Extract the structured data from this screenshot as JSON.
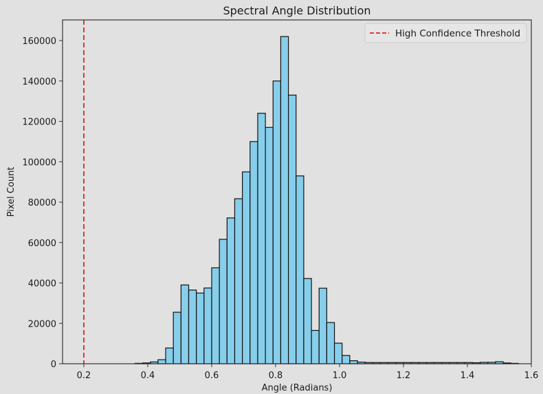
{
  "chart_data": {
    "type": "bar",
    "subtype": "histogram",
    "title": "Spectral Angle Distribution",
    "xlabel": "Angle (Radians)",
    "ylabel": "Pixel Count",
    "xlim": [
      0.135,
      1.6
    ],
    "ylim": [
      0,
      170000
    ],
    "x_ticks": [
      0.2,
      0.4,
      0.6,
      0.8,
      1.0,
      1.2,
      1.4,
      1.6
    ],
    "x_tick_labels": [
      "0.2",
      "0.4",
      "0.6",
      "0.8",
      "1.0",
      "1.2",
      "1.4",
      "1.6"
    ],
    "y_ticks": [
      0,
      20000,
      40000,
      60000,
      80000,
      100000,
      120000,
      140000,
      160000
    ],
    "y_tick_labels": [
      "0",
      "20000",
      "40000",
      "60000",
      "80000",
      "100000",
      "120000",
      "140000",
      "160000"
    ],
    "grid": false,
    "bin_start": 0.36,
    "bin_width": 0.024,
    "bar_color": "#87ceeb",
    "bar_edge_color": "#111111",
    "values": [
      200,
      400,
      900,
      2000,
      7800,
      25500,
      39000,
      36500,
      35000,
      37500,
      47500,
      61600,
      72200,
      81700,
      95000,
      110000,
      124000,
      117000,
      140000,
      162000,
      133000,
      93000,
      42200,
      16500,
      37400,
      20400,
      10200,
      4100,
      1500,
      800,
      600,
      600,
      600,
      600,
      600,
      600,
      600,
      600,
      600,
      600,
      600,
      600,
      600,
      600,
      500,
      700,
      700,
      1000,
      400,
      200
    ],
    "threshold_line": {
      "x": 0.2,
      "color": "#d62728",
      "style": "dashed",
      "label": "High Confidence Threshold"
    },
    "legend": {
      "position": "upper right",
      "entries": [
        "High Confidence Threshold"
      ]
    }
  }
}
